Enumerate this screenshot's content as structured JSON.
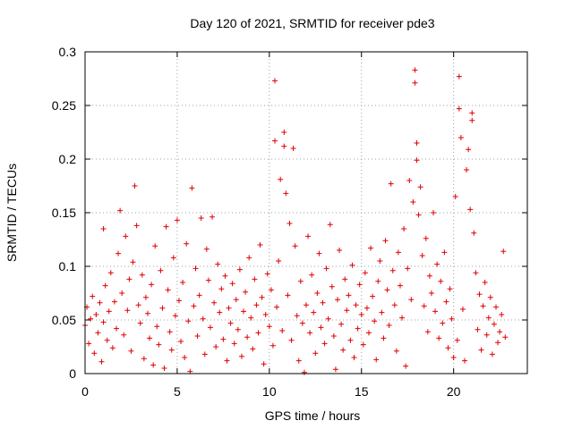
{
  "chart_data": {
    "type": "scatter",
    "title": "Day 120 of 2021, SRMTID for receiver pde3",
    "xlabel": "GPS time / hours",
    "ylabel": "SRMTID / TECUs",
    "xlim": [
      0,
      24
    ],
    "ylim": [
      0,
      0.3
    ],
    "xticks": [
      0,
      5,
      10,
      15,
      20
    ],
    "yticks": [
      0,
      0.05,
      0.1,
      0.15,
      0.2,
      0.25,
      0.3
    ],
    "xtick_labels": [
      "0",
      "5",
      "10",
      "15",
      "20"
    ],
    "ytick_labels": [
      "0",
      "0.05",
      "0.1",
      "0.15",
      "0.2",
      "0.25",
      "0.3"
    ],
    "grid": true,
    "marker": "+",
    "color": "#e00000",
    "series": [
      {
        "name": "SRMTID",
        "points": [
          [
            0.0,
            0.045
          ],
          [
            0.1,
            0.062
          ],
          [
            0.2,
            0.028
          ],
          [
            0.3,
            0.051
          ],
          [
            0.4,
            0.072
          ],
          [
            0.5,
            0.019
          ],
          [
            0.6,
            0.055
          ],
          [
            0.7,
            0.038
          ],
          [
            0.8,
            0.066
          ],
          [
            0.9,
            0.011
          ],
          [
            1.0,
            0.048
          ],
          [
            1.0,
            0.135
          ],
          [
            1.1,
            0.082
          ],
          [
            1.2,
            0.031
          ],
          [
            1.3,
            0.058
          ],
          [
            1.4,
            0.094
          ],
          [
            1.5,
            0.024
          ],
          [
            1.6,
            0.067
          ],
          [
            1.7,
            0.042
          ],
          [
            1.8,
            0.112
          ],
          [
            1.9,
            0.152
          ],
          [
            2.0,
            0.075
          ],
          [
            2.1,
            0.036
          ],
          [
            2.2,
            0.128
          ],
          [
            2.3,
            0.059
          ],
          [
            2.4,
            0.088
          ],
          [
            2.5,
            0.021
          ],
          [
            2.6,
            0.104
          ],
          [
            2.7,
            0.175
          ],
          [
            2.8,
            0.138
          ],
          [
            2.9,
            0.064
          ],
          [
            3.0,
            0.047
          ],
          [
            3.1,
            0.092
          ],
          [
            3.2,
            0.014
          ],
          [
            3.3,
            0.071
          ],
          [
            3.4,
            0.056
          ],
          [
            3.5,
            0.033
          ],
          [
            3.6,
            0.083
          ],
          [
            3.7,
            0.008
          ],
          [
            3.8,
            0.119
          ],
          [
            3.9,
            0.044
          ],
          [
            4.0,
            0.027
          ],
          [
            4.1,
            0.096
          ],
          [
            4.2,
            0.061
          ],
          [
            4.3,
            0.005
          ],
          [
            4.4,
            0.137
          ],
          [
            4.5,
            0.078
          ],
          [
            4.6,
            0.039
          ],
          [
            4.7,
            0.022
          ],
          [
            4.8,
            0.108
          ],
          [
            4.9,
            0.054
          ],
          [
            5.0,
            0.143
          ],
          [
            5.1,
            0.068
          ],
          [
            5.2,
            0.03
          ],
          [
            5.3,
            0.085
          ],
          [
            5.4,
            0.015
          ],
          [
            5.5,
            0.121
          ],
          [
            5.6,
            0.049
          ],
          [
            5.7,
            0.002
          ],
          [
            5.8,
            0.173
          ],
          [
            5.9,
            0.063
          ],
          [
            6.0,
            0.098
          ],
          [
            6.1,
            0.035
          ],
          [
            6.2,
            0.073
          ],
          [
            6.3,
            0.145
          ],
          [
            6.4,
            0.051
          ],
          [
            6.5,
            0.018
          ],
          [
            6.6,
            0.116
          ],
          [
            6.7,
            0.087
          ],
          [
            6.8,
            0.043
          ],
          [
            6.9,
            0.146
          ],
          [
            7.0,
            0.066
          ],
          [
            7.1,
            0.025
          ],
          [
            7.2,
            0.102
          ],
          [
            7.3,
            0.057
          ],
          [
            7.4,
            0.079
          ],
          [
            7.5,
            0.032
          ],
          [
            7.6,
            0.091
          ],
          [
            7.7,
            0.012
          ],
          [
            7.8,
            0.061
          ],
          [
            7.9,
            0.047
          ],
          [
            8.0,
            0.084
          ],
          [
            8.1,
            0.028
          ],
          [
            8.2,
            0.069
          ],
          [
            8.3,
            0.041
          ],
          [
            8.4,
            0.097
          ],
          [
            8.5,
            0.016
          ],
          [
            8.6,
            0.058
          ],
          [
            8.7,
            0.076
          ],
          [
            8.8,
            0.034
          ],
          [
            8.9,
            0.108
          ],
          [
            9.0,
            0.052
          ],
          [
            9.1,
            0.023
          ],
          [
            9.2,
            0.088
          ],
          [
            9.3,
            0.064
          ],
          [
            9.4,
            0.038
          ],
          [
            9.5,
            0.12
          ],
          [
            9.6,
            0.071
          ],
          [
            9.7,
            0.009
          ],
          [
            9.8,
            0.055
          ],
          [
            9.9,
            0.093
          ],
          [
            10.0,
            0.044
          ],
          [
            10.1,
            0.078
          ],
          [
            10.2,
            0.026
          ],
          [
            10.3,
            0.273
          ],
          [
            10.3,
            0.217
          ],
          [
            10.4,
            0.062
          ],
          [
            10.5,
            0.105
          ],
          [
            10.6,
            0.181
          ],
          [
            10.7,
            0.04
          ],
          [
            10.8,
            0.225
          ],
          [
            10.8,
            0.212
          ],
          [
            10.9,
            0.168
          ],
          [
            11.0,
            0.073
          ],
          [
            11.1,
            0.14
          ],
          [
            11.2,
            0.031
          ],
          [
            11.3,
            0.21
          ],
          [
            11.4,
            0.119
          ],
          [
            11.5,
            0.054
          ],
          [
            11.6,
            0.012
          ],
          [
            11.7,
            0.086
          ],
          [
            11.8,
            0.047
          ],
          [
            11.9,
            0.001
          ],
          [
            12.0,
            0.064
          ],
          [
            12.1,
            0.128
          ],
          [
            12.2,
            0.038
          ],
          [
            12.3,
            0.092
          ],
          [
            12.4,
            0.057
          ],
          [
            12.5,
            0.019
          ],
          [
            12.6,
            0.075
          ],
          [
            12.7,
            0.112
          ],
          [
            12.8,
            0.043
          ],
          [
            12.9,
            0.066
          ],
          [
            13.0,
            0.028
          ],
          [
            13.1,
            0.098
          ],
          [
            13.2,
            0.051
          ],
          [
            13.3,
            0.139
          ],
          [
            13.4,
            0.081
          ],
          [
            13.5,
            0.035
          ],
          [
            13.6,
            0.004
          ],
          [
            13.7,
            0.069
          ],
          [
            13.8,
            0.115
          ],
          [
            13.9,
            0.046
          ],
          [
            14.0,
            0.022
          ],
          [
            14.1,
            0.088
          ],
          [
            14.2,
            0.059
          ],
          [
            14.3,
            0.073
          ],
          [
            14.4,
            0.031
          ],
          [
            14.5,
            0.101
          ],
          [
            14.6,
            0.015
          ],
          [
            14.7,
            0.064
          ],
          [
            14.8,
            0.042
          ],
          [
            14.9,
            0.083
          ],
          [
            15.0,
            0.055
          ],
          [
            15.1,
            0.027
          ],
          [
            15.2,
            0.094
          ],
          [
            15.3,
            0.061
          ],
          [
            15.4,
            0.038
          ],
          [
            15.5,
            0.117
          ],
          [
            15.6,
            0.072
          ],
          [
            15.7,
            0.049
          ],
          [
            15.8,
            0.013
          ],
          [
            15.9,
            0.086
          ],
          [
            16.0,
            0.105
          ],
          [
            16.1,
            0.057
          ],
          [
            16.2,
            0.033
          ],
          [
            16.3,
            0.124
          ],
          [
            16.4,
            0.078
          ],
          [
            16.5,
            0.045
          ],
          [
            16.6,
            0.177
          ],
          [
            16.7,
            0.096
          ],
          [
            16.8,
            0.064
          ],
          [
            16.9,
            0.021
          ],
          [
            17.0,
            0.113
          ],
          [
            17.1,
            0.082
          ],
          [
            17.2,
            0.052
          ],
          [
            17.3,
            0.135
          ],
          [
            17.4,
            0.007
          ],
          [
            17.5,
            0.098
          ],
          [
            17.6,
            0.18
          ],
          [
            17.7,
            0.069
          ],
          [
            17.8,
            0.16
          ],
          [
            17.9,
            0.283
          ],
          [
            17.9,
            0.271
          ],
          [
            18.0,
            0.215
          ],
          [
            18.0,
            0.199
          ],
          [
            18.1,
            0.148
          ],
          [
            18.2,
            0.174
          ],
          [
            18.3,
            0.11
          ],
          [
            18.4,
            0.063
          ],
          [
            18.5,
            0.126
          ],
          [
            18.6,
            0.039
          ],
          [
            18.7,
            0.091
          ],
          [
            18.8,
            0.075
          ],
          [
            18.9,
            0.15
          ],
          [
            19.0,
            0.058
          ],
          [
            19.1,
            0.102
          ],
          [
            19.2,
            0.033
          ],
          [
            19.3,
            0.086
          ],
          [
            19.4,
            0.047
          ],
          [
            19.5,
            0.113
          ],
          [
            19.6,
            0.067
          ],
          [
            19.7,
            0.024
          ],
          [
            19.8,
            0.079
          ],
          [
            19.9,
            0.051
          ],
          [
            20.0,
            0.015
          ],
          [
            20.1,
            0.165
          ],
          [
            20.2,
            0.031
          ],
          [
            20.3,
            0.277
          ],
          [
            20.3,
            0.247
          ],
          [
            20.4,
            0.22
          ],
          [
            20.5,
            0.06
          ],
          [
            20.6,
            0.012
          ],
          [
            20.7,
            0.19
          ],
          [
            20.8,
            0.209
          ],
          [
            20.9,
            0.153
          ],
          [
            21.0,
            0.243
          ],
          [
            21.0,
            0.236
          ],
          [
            21.1,
            0.131
          ],
          [
            21.2,
            0.094
          ],
          [
            21.3,
            0.041
          ],
          [
            21.4,
            0.074
          ],
          [
            21.5,
            0.022
          ],
          [
            21.6,
            0.063
          ],
          [
            21.7,
            0.085
          ],
          [
            21.8,
            0.036
          ],
          [
            21.9,
            0.052
          ],
          [
            22.0,
            0.071
          ],
          [
            22.1,
            0.018
          ],
          [
            22.2,
            0.046
          ],
          [
            22.3,
            0.062
          ],
          [
            22.4,
            0.029
          ],
          [
            22.5,
            0.039
          ],
          [
            22.6,
            0.055
          ],
          [
            22.7,
            0.114
          ],
          [
            22.8,
            0.034
          ]
        ]
      }
    ]
  }
}
